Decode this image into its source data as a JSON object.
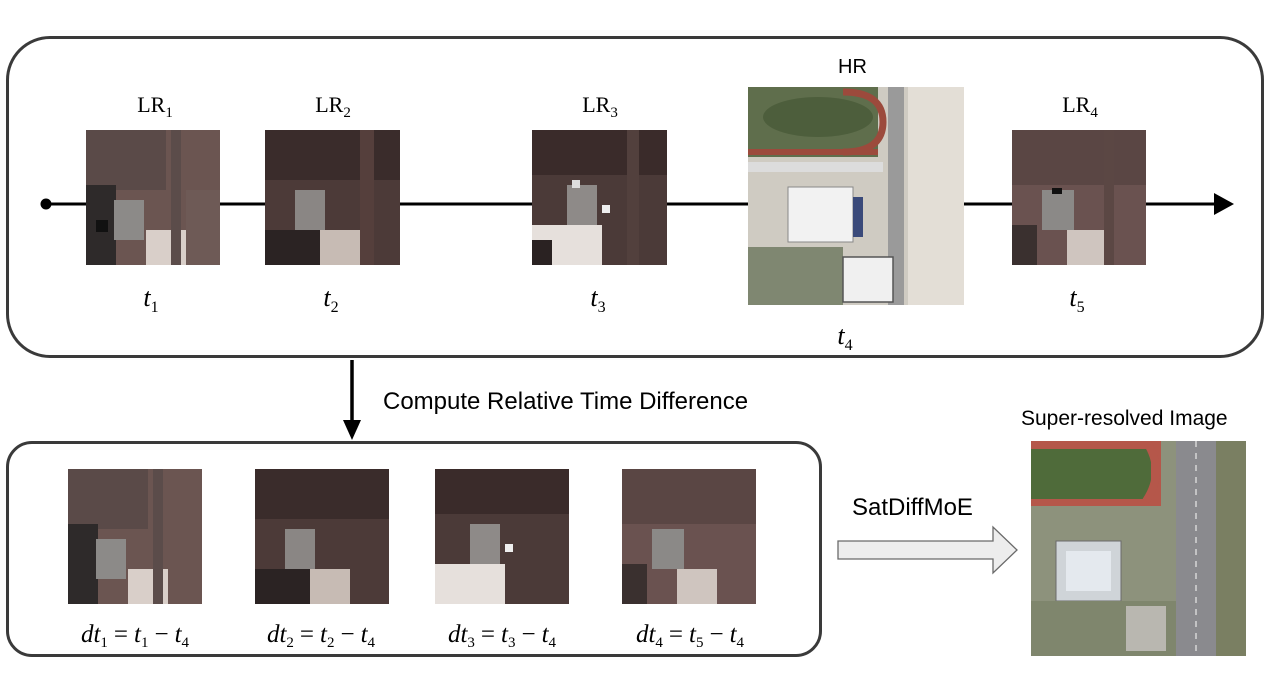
{
  "timeline": {
    "lr_labels": [
      {
        "base": "LR",
        "sub": "1"
      },
      {
        "base": "LR",
        "sub": "2"
      },
      {
        "base": "LR",
        "sub": "3"
      },
      {
        "base": "LR",
        "sub": "4"
      }
    ],
    "hr_label": "HR",
    "time_labels": [
      {
        "base": "t",
        "sub": "1"
      },
      {
        "base": "t",
        "sub": "2"
      },
      {
        "base": "t",
        "sub": "3"
      },
      {
        "base": "t",
        "sub": "4"
      },
      {
        "base": "t",
        "sub": "5"
      }
    ]
  },
  "compute_label": "Compute Relative Time Difference",
  "equations": [
    {
      "lhs_base": "dt",
      "lhs_sub": "1",
      "a_base": "t",
      "a_sub": "1",
      "b_base": "t",
      "b_sub": "4"
    },
    {
      "lhs_base": "dt",
      "lhs_sub": "2",
      "a_base": "t",
      "a_sub": "2",
      "b_base": "t",
      "b_sub": "4"
    },
    {
      "lhs_base": "dt",
      "lhs_sub": "3",
      "a_base": "t",
      "a_sub": "3",
      "b_base": "t",
      "b_sub": "4"
    },
    {
      "lhs_base": "dt",
      "lhs_sub": "4",
      "a_base": "t",
      "a_sub": "5",
      "b_base": "t",
      "b_sub": "4"
    }
  ],
  "model_label": "SatDiffMoE",
  "output_label": "Super-resolved Image",
  "symbols": {
    "equals": "=",
    "minus": "−"
  }
}
